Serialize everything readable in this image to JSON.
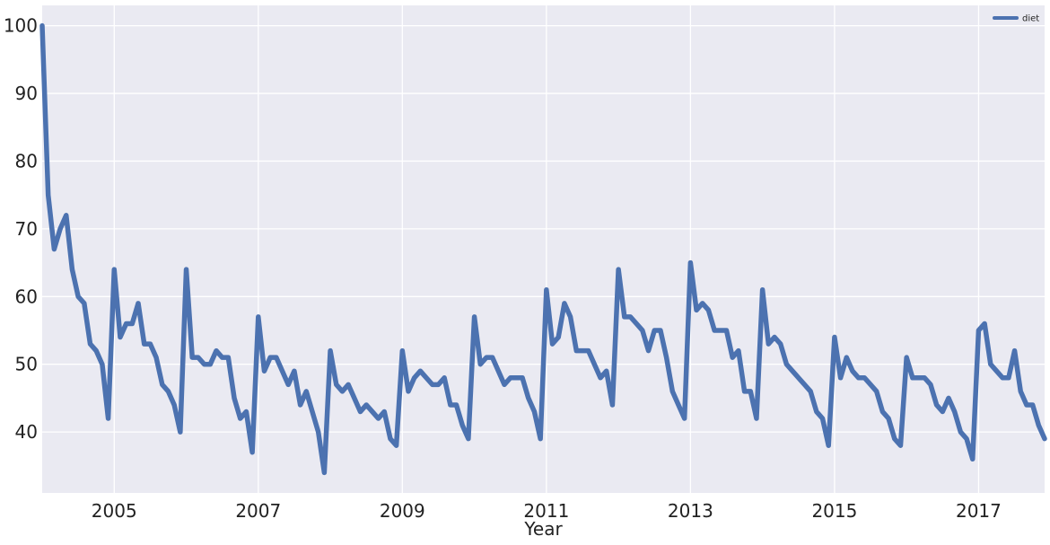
{
  "chart_data": {
    "type": "line",
    "xlabel": "Year",
    "ylabel": "",
    "title": "",
    "legend_position": "top-right",
    "grid": true,
    "xlim": [
      "2004-01",
      "2017-12"
    ],
    "ylim": [
      31,
      103
    ],
    "x_ticks": [
      "2005",
      "2007",
      "2009",
      "2011",
      "2013",
      "2015",
      "2017"
    ],
    "y_ticks": [
      "40",
      "50",
      "60",
      "70",
      "80",
      "90",
      "100"
    ],
    "start_month": "2004-01",
    "colors": {
      "plot_bg": "#EAEAF2",
      "grid": "#FFFFFF",
      "line": "#4C72B0"
    },
    "series": [
      {
        "name": "diet",
        "color": "#4C72B0",
        "values": [
          100,
          75,
          67,
          70,
          72,
          64,
          60,
          59,
          53,
          52,
          50,
          42,
          64,
          54,
          56,
          56,
          59,
          53,
          53,
          51,
          47,
          46,
          44,
          40,
          64,
          51,
          51,
          50,
          50,
          52,
          51,
          51,
          45,
          42,
          43,
          37,
          57,
          49,
          51,
          51,
          49,
          47,
          49,
          44,
          46,
          43,
          40,
          34,
          52,
          47,
          46,
          47,
          45,
          43,
          44,
          43,
          42,
          43,
          39,
          38,
          52,
          46,
          48,
          49,
          48,
          47,
          47,
          48,
          44,
          44,
          41,
          39,
          57,
          50,
          51,
          51,
          49,
          47,
          48,
          48,
          48,
          45,
          43,
          39,
          61,
          53,
          54,
          59,
          57,
          52,
          52,
          52,
          50,
          48,
          49,
          44,
          64,
          57,
          57,
          56,
          55,
          52,
          55,
          55,
          51,
          46,
          44,
          42,
          65,
          58,
          59,
          58,
          55,
          55,
          55,
          51,
          52,
          46,
          46,
          42,
          61,
          53,
          54,
          53,
          50,
          49,
          48,
          47,
          46,
          43,
          42,
          38,
          54,
          48,
          51,
          49,
          48,
          48,
          47,
          46,
          43,
          42,
          39,
          38,
          51,
          48,
          48,
          48,
          47,
          44,
          43,
          45,
          43,
          40,
          39,
          36,
          55,
          56,
          50,
          49,
          48,
          48,
          52,
          46,
          44,
          44,
          41,
          39
        ]
      }
    ]
  }
}
